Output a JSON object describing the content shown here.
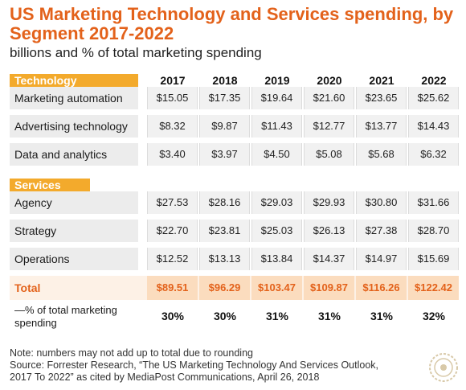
{
  "title": "US Marketing Technology and Services spending, by Segment 2017-2022",
  "subtitle": "billions and % of total marketing spending",
  "sections": {
    "technology": "Technology",
    "services": "Services"
  },
  "columns": [
    "2017",
    "2018",
    "2019",
    "2020",
    "2021",
    "2022"
  ],
  "rows": [
    {
      "label": "Marketing automation",
      "values": [
        "$15.05",
        "$17.35",
        "$19.64",
        "$21.60",
        "$23.65",
        "$25.62"
      ]
    },
    {
      "label": "Advertising technology",
      "values": [
        "$8.32",
        "$9.87",
        "$11.43",
        "$12.77",
        "$13.77",
        "$14.43"
      ]
    },
    {
      "label": "Data and analytics",
      "values": [
        "$3.40",
        "$3.97",
        "$4.50",
        "$5.08",
        "$5.68",
        "$6.32"
      ]
    },
    {
      "label": "Agency",
      "values": [
        "$27.53",
        "$28.16",
        "$29.03",
        "$29.93",
        "$30.80",
        "$31.66"
      ]
    },
    {
      "label": "Strategy",
      "values": [
        "$22.70",
        "$23.81",
        "$25.03",
        "$26.13",
        "$27.38",
        "$28.70"
      ]
    },
    {
      "label": "Operations",
      "values": [
        "$12.52",
        "$13.13",
        "$13.84",
        "$14.37",
        "$14.97",
        "$15.69"
      ]
    }
  ],
  "total": {
    "label": "Total",
    "values": [
      "$89.51",
      "$96.29",
      "$103.47",
      "$109.87",
      "$116.26",
      "$122.42"
    ]
  },
  "percent": {
    "label": "—% of total marketing spending",
    "values": [
      "30%",
      "30%",
      "31%",
      "31%",
      "31%",
      "32%"
    ]
  },
  "notes": {
    "line1": "Note: numbers may not add up to total due to rounding",
    "line2": "Source: Forrester Research, “The US Marketing Technology And Services Outlook,",
    "line3": "2017 To 2022” as cited by MediaPost Communications, April 26, 2018"
  },
  "colors": {
    "accent": "#e3621b",
    "section_bar": "#f3aa2c",
    "row_band": "#ececec",
    "total_band": "#fdf1e6"
  },
  "chart_data": {
    "type": "table",
    "title": "US Marketing Technology and Services spending, by Segment 2017-2022",
    "subtitle": "billions and % of total marketing spending",
    "columns": [
      "2017",
      "2018",
      "2019",
      "2020",
      "2021",
      "2022"
    ],
    "groups": [
      {
        "name": "Technology",
        "rows": [
          {
            "label": "Marketing automation",
            "values": [
              15.05,
              17.35,
              19.64,
              21.6,
              23.65,
              25.62
            ]
          },
          {
            "label": "Advertising technology",
            "values": [
              8.32,
              9.87,
              11.43,
              12.77,
              13.77,
              14.43
            ]
          },
          {
            "label": "Data and analytics",
            "values": [
              3.4,
              3.97,
              4.5,
              5.08,
              5.68,
              6.32
            ]
          }
        ]
      },
      {
        "name": "Services",
        "rows": [
          {
            "label": "Agency",
            "values": [
              27.53,
              28.16,
              29.03,
              29.93,
              30.8,
              31.66
            ]
          },
          {
            "label": "Strategy",
            "values": [
              22.7,
              23.81,
              25.03,
              26.13,
              27.38,
              28.7
            ]
          },
          {
            "label": "Operations",
            "values": [
              12.52,
              13.13,
              13.84,
              14.37,
              14.97,
              15.69
            ]
          }
        ]
      }
    ],
    "total": [
      89.51,
      96.29,
      103.47,
      109.87,
      116.26,
      122.42
    ],
    "percent_of_total_marketing_spending": [
      30,
      30,
      31,
      31,
      31,
      32
    ]
  }
}
